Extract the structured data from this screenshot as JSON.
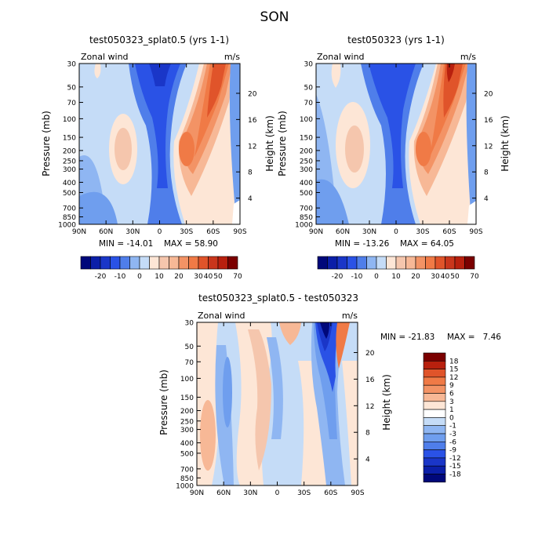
{
  "season": "SON",
  "chart_data": [
    {
      "type": "heatmap",
      "title": "test050323_splat0.5 (yrs 1-1)",
      "field_label": "Zonal wind",
      "units": "m/s",
      "xlabel": "",
      "ylabel": "Pressure (mb)",
      "y2label": "Height (km)",
      "x_ticks": [
        "90N",
        "60N",
        "30N",
        "0",
        "30S",
        "60S",
        "90S"
      ],
      "y_ticks": [
        "30",
        "50",
        "70",
        "100",
        "150",
        "200",
        "250",
        "300",
        "400",
        "500",
        "700",
        "850",
        "1000"
      ],
      "y2_ticks": [
        "20",
        "16",
        "12",
        "8",
        "4"
      ],
      "min_label": "MIN = -14.01",
      "max_label": "MAX = 58.90",
      "min": -14.01,
      "max": 58.9,
      "colorbar_levels": [
        -25,
        -20,
        -15,
        -10,
        -5,
        0,
        5,
        10,
        15,
        20,
        25,
        30,
        40,
        50,
        60,
        70
      ],
      "colorbar_tick_labels": [
        "-20",
        "-10",
        "0",
        "10",
        "20",
        "30",
        "40",
        "50",
        "70"
      ]
    },
    {
      "type": "heatmap",
      "title": "test050323 (yrs 1-1)",
      "field_label": "Zonal wind",
      "units": "m/s",
      "xlabel": "",
      "ylabel": "Pressure (mb)",
      "y2label": "Height (km)",
      "x_ticks": [
        "90N",
        "60N",
        "30N",
        "0",
        "30S",
        "60S",
        "90S"
      ],
      "y_ticks": [
        "30",
        "50",
        "70",
        "100",
        "150",
        "200",
        "250",
        "300",
        "400",
        "500",
        "700",
        "850",
        "1000"
      ],
      "y2_ticks": [
        "20",
        "16",
        "12",
        "8",
        "4"
      ],
      "min_label": "MIN = -13.26",
      "max_label": "MAX = 64.05",
      "min": -13.26,
      "max": 64.05,
      "colorbar_levels": [
        -25,
        -20,
        -15,
        -10,
        -5,
        0,
        5,
        10,
        15,
        20,
        25,
        30,
        40,
        50,
        60,
        70
      ],
      "colorbar_tick_labels": [
        "-20",
        "-10",
        "0",
        "10",
        "20",
        "30",
        "40",
        "50",
        "70"
      ]
    },
    {
      "type": "heatmap",
      "title": "test050323_splat0.5 - test050323",
      "field_label": "Zonal wind",
      "units": "m/s",
      "xlabel": "",
      "ylabel": "Pressure (mb)",
      "y2label": "Height (km)",
      "x_ticks": [
        "90N",
        "60N",
        "30N",
        "0",
        "30S",
        "60S",
        "90S"
      ],
      "y_ticks": [
        "30",
        "50",
        "70",
        "100",
        "150",
        "200",
        "250",
        "300",
        "400",
        "500",
        "700",
        "850",
        "1000"
      ],
      "y2_ticks": [
        "20",
        "16",
        "12",
        "8",
        "4"
      ],
      "min_label": "MIN = -21.83",
      "max_label": "MAX =   7.46",
      "min": -21.83,
      "max": 7.46,
      "colorbar_levels": [
        18,
        15,
        12,
        9,
        6,
        3,
        1,
        0,
        -1,
        -3,
        -6,
        -9,
        -12,
        -15,
        -18
      ],
      "colorbar_tick_labels": [
        "18",
        "15",
        "12",
        "9",
        "6",
        "3",
        "1",
        "0",
        "-1",
        "-3",
        "-6",
        "-9",
        "-12",
        "-15",
        "-18"
      ]
    }
  ],
  "colors": {
    "dark_blue": "#00087a",
    "mid_blue": "#2a52e6",
    "light_blue": "#c5dcf7",
    "cream": "#fde6d6",
    "orange": "#f07a46",
    "dark_red": "#7b0000"
  }
}
